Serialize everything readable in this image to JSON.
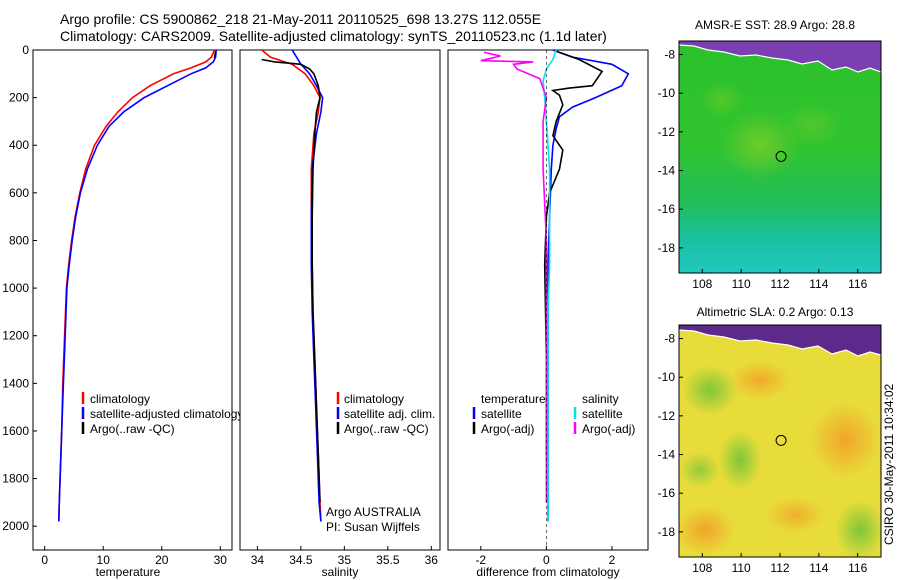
{
  "figure": {
    "title_line1": "Argo profile: CS 5900862_218 21-May-2011 20110525_698 13.27S 112.055E",
    "title_line2": "Climatology: CARS2009. Satellite-adjusted climatology: synTS_20110523.nc (1.1d later)",
    "side_label": "CSIRO 30-May-2011 10:34:02",
    "argo_credit_line1": "Argo AUSTRALIA",
    "argo_credit_line2": "PI: Susan Wijffels"
  },
  "colors": {
    "climatology": "#ff0000",
    "satellite": "#0000ff",
    "argo": "#000000",
    "sat_salinity": "#00e5e5",
    "argo_salinity_adj": "#ff00ff"
  },
  "chart_data": [
    {
      "id": "temperature",
      "type": "line",
      "xlabel": "temperature",
      "ylabel": "",
      "xlim": [
        -2,
        32
      ],
      "ylim": [
        0,
        2100
      ],
      "xticks": [
        0,
        10,
        20,
        30
      ],
      "yticks": [
        0,
        200,
        400,
        600,
        800,
        1000,
        1200,
        1400,
        1600,
        1800,
        2000
      ],
      "legend": [
        "climatology",
        "satellite-adjusted climatology",
        "Argo(..raw -QC)"
      ],
      "series": [
        {
          "name": "climatology",
          "color": "#ff0000",
          "x": [
            29,
            28.5,
            27.5,
            25,
            22,
            18,
            15,
            12.5,
            10.5,
            8.5,
            7,
            6,
            5.2,
            4.6,
            4.1,
            3.7,
            3.4,
            3.1,
            2.9,
            2.7,
            2.5,
            2.4
          ],
          "y": [
            0,
            30,
            50,
            75,
            100,
            150,
            200,
            260,
            320,
            400,
            500,
            600,
            700,
            800,
            900,
            1000,
            1200,
            1400,
            1600,
            1750,
            1900,
            1980
          ]
        },
        {
          "name": "satellite-adjusted climatology",
          "color": "#0000ff",
          "x": [
            29.3,
            29.2,
            28.8,
            27.5,
            25,
            21,
            17,
            13.5,
            11,
            9,
            7.3,
            6.1,
            5.3,
            4.7,
            4.2,
            3.8,
            3.5,
            3.2,
            2.9,
            2.7,
            2.5,
            2.4
          ],
          "y": [
            0,
            30,
            50,
            75,
            100,
            150,
            200,
            260,
            320,
            400,
            500,
            600,
            700,
            800,
            900,
            1000,
            1200,
            1400,
            1600,
            1750,
            1900,
            1980
          ]
        },
        {
          "name": "Argo(..raw -QC)",
          "color": "#000000",
          "x": [
            29.2,
            29.1,
            29
          ],
          "y": [
            5,
            20,
            35
          ]
        }
      ]
    },
    {
      "id": "salinity",
      "type": "line",
      "xlabel": "salinity",
      "ylabel": "",
      "xlim": [
        33.8,
        36.1
      ],
      "ylim": [
        0,
        2100
      ],
      "xticks": [
        34,
        34.5,
        35,
        35.5,
        36
      ],
      "yticks": [],
      "legend": [
        "climatology",
        "satellite adj. clim.",
        "Argo(..raw -QC)"
      ],
      "series": [
        {
          "name": "climatology",
          "color": "#ff0000",
          "x": [
            34.05,
            34.15,
            34.4,
            34.55,
            34.65,
            34.72,
            34.7,
            34.65,
            34.62,
            34.62,
            34.63,
            34.64,
            34.66,
            34.68,
            34.7,
            34.72,
            34.73
          ],
          "y": [
            0,
            30,
            60,
            100,
            150,
            200,
            260,
            350,
            500,
            700,
            900,
            1100,
            1300,
            1500,
            1700,
            1900,
            1980
          ]
        },
        {
          "name": "satellite adj. clim.",
          "color": "#0000ff",
          "x": [
            34.4,
            34.45,
            34.5,
            34.6,
            34.68,
            34.75,
            34.73,
            34.68,
            34.63,
            34.62,
            34.62,
            34.63,
            34.65,
            34.67,
            34.69,
            34.71,
            34.73
          ],
          "y": [
            0,
            30,
            60,
            100,
            150,
            200,
            260,
            350,
            500,
            700,
            900,
            1100,
            1300,
            1500,
            1700,
            1900,
            1980
          ]
        },
        {
          "name": "Argo(..raw -QC)",
          "color": "#000000",
          "x": [
            34.05,
            34.2,
            34.35,
            34.5,
            34.6,
            34.65,
            34.7,
            34.72,
            34.68,
            34.66,
            34.64,
            34.63,
            34.63,
            34.64,
            34.66,
            34.68,
            34.7,
            34.72
          ],
          "y": [
            40,
            50,
            55,
            60,
            80,
            100,
            150,
            200,
            260,
            350,
            500,
            700,
            900,
            1100,
            1300,
            1500,
            1700,
            1900
          ]
        }
      ]
    },
    {
      "id": "difference",
      "type": "line",
      "xlabel": "difference from climatology",
      "ylabel": "",
      "xlim": [
        -3,
        3.1
      ],
      "ylim": [
        0,
        2100
      ],
      "xticks": [
        -2,
        0,
        2
      ],
      "yticks": [],
      "legend": [
        "temperature",
        "satellite",
        "Argo(-adj)",
        "salinity",
        "satellite",
        "Argo(-adj)"
      ],
      "series": [
        {
          "name": "temperature satellite",
          "color": "#0000ff",
          "x": [
            0.2,
            0.8,
            2.0,
            2.5,
            2.3,
            1.5,
            0.8,
            0.4,
            0.3,
            0.2,
            0.15,
            0.1,
            0.05,
            0.05,
            0.05,
            0.05,
            0.05
          ],
          "y": [
            0,
            30,
            60,
            100,
            150,
            200,
            240,
            280,
            330,
            400,
            500,
            700,
            900,
            1200,
            1500,
            1800,
            1980
          ]
        },
        {
          "name": "temperature Argo(-adj)",
          "color": "#000000",
          "x": [
            0.3,
            1.0,
            1.7,
            1.4,
            0.7,
            0.2,
            0.4,
            0.5,
            0.3,
            0.2,
            0.5,
            0.4,
            0.1,
            0.0,
            -0.05,
            0.0,
            0.0
          ],
          "y": [
            5,
            40,
            90,
            150,
            160,
            170,
            190,
            230,
            300,
            360,
            420,
            500,
            600,
            700,
            900,
            1300,
            1700
          ]
        },
        {
          "name": "salinity satellite",
          "color": "#00e5e5",
          "x": [
            0.3,
            0.2,
            0.0,
            -0.1,
            -0.05,
            0.0,
            0.05,
            0.1,
            0.1,
            0.1,
            0.05,
            0.05,
            0.05,
            0.05,
            0.05
          ],
          "y": [
            0,
            40,
            80,
            130,
            200,
            300,
            400,
            500,
            700,
            900,
            1100,
            1300,
            1500,
            1700,
            1980
          ]
        },
        {
          "name": "salinity Argo(-adj)",
          "color": "#ff00ff",
          "x": [
            -1.9,
            -1.4,
            -2.0,
            -0.4,
            -1.0,
            -0.9,
            -0.2,
            0.0,
            -0.1,
            -0.1,
            0.0,
            0.0,
            0.0,
            0.0
          ],
          "y": [
            10,
            25,
            45,
            50,
            60,
            80,
            120,
            200,
            300,
            500,
            800,
            1200,
            1600,
            1900
          ]
        }
      ]
    },
    {
      "id": "sst_map",
      "type": "heatmap",
      "title": "AMSR-E SST: 28.9 Argo: 28.8",
      "xlim": [
        106.8,
        117.2
      ],
      "ylim": [
        -19.3,
        -7.3
      ],
      "xticks": [
        108,
        110,
        112,
        114,
        116
      ],
      "yticks": [
        -8,
        -10,
        -12,
        -14,
        -16,
        -18
      ],
      "marker": {
        "lon": 112.055,
        "lat": -13.27
      }
    },
    {
      "id": "sla_map",
      "type": "heatmap",
      "title": "Altimetric SLA: 0.2 Argo: 0.13",
      "xlim": [
        106.8,
        117.2
      ],
      "ylim": [
        -19.3,
        -7.3
      ],
      "xticks": [
        108,
        110,
        112,
        114,
        116
      ],
      "yticks": [
        -8,
        -10,
        -12,
        -14,
        -16,
        -18
      ],
      "marker": {
        "lon": 112.055,
        "lat": -13.27
      }
    }
  ]
}
